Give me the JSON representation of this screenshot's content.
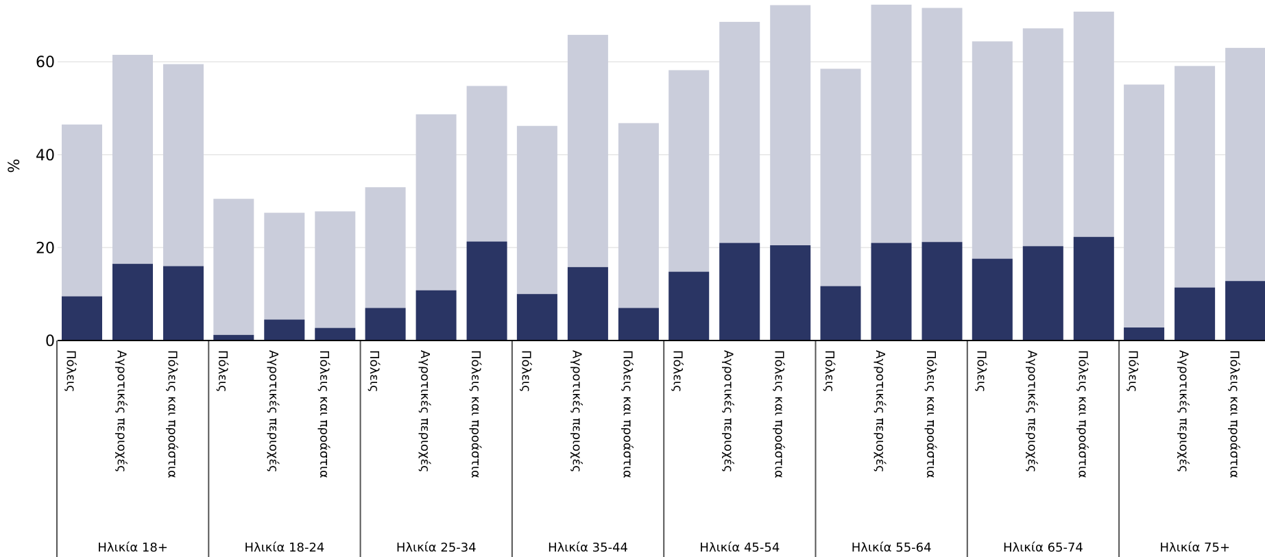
{
  "chart_data": {
    "type": "bar",
    "stacked": "overlapping",
    "title": "",
    "xlabel": "",
    "ylabel": "%",
    "ylim": [
      0,
      73
    ],
    "yticks": [
      "0",
      "20",
      "40",
      "60"
    ],
    "grid": "horizontal",
    "legend": "none",
    "colors": {
      "background_series": "#cacddb",
      "foreground_series": "#2a3564",
      "grid": "#e6e6e6",
      "axis": "#000000",
      "separator": "#555555"
    },
    "groups": [
      {
        "label": "Ηλικία 18+",
        "categories": [
          "Πόλεις",
          "Αγροτικές περιοχές",
          "Πόλεις και προάστια"
        ],
        "total": [
          46.5,
          61.5,
          59.5
        ],
        "dark": [
          9.5,
          16.5,
          16.0
        ]
      },
      {
        "label": "Ηλικία 18-24",
        "categories": [
          "Πόλεις",
          "Αγροτικές περιοχές",
          "Πόλεις και προάστια"
        ],
        "total": [
          30.5,
          27.5,
          27.8
        ],
        "dark": [
          1.2,
          4.5,
          2.7
        ]
      },
      {
        "label": "Ηλικία 25-34",
        "categories": [
          "Πόλεις",
          "Αγροτικές περιοχές",
          "Πόλεις και προάστια"
        ],
        "total": [
          33.0,
          48.7,
          54.8
        ],
        "dark": [
          7.0,
          10.8,
          21.3
        ]
      },
      {
        "label": "Ηλικία 35-44",
        "categories": [
          "Πόλεις",
          "Αγροτικές περιοχές",
          "Πόλεις και προάστια"
        ],
        "total": [
          46.2,
          65.8,
          46.8
        ],
        "dark": [
          10.0,
          15.8,
          7.0
        ]
      },
      {
        "label": "Ηλικία 45-54",
        "categories": [
          "Πόλεις",
          "Αγροτικές περιοχές",
          "Πόλεις και προάστια"
        ],
        "total": [
          58.2,
          68.6,
          72.2
        ],
        "dark": [
          14.8,
          21.0,
          20.5
        ]
      },
      {
        "label": "Ηλικία 55-64",
        "categories": [
          "Πόλεις",
          "Αγροτικές περιοχές",
          "Πόλεις και προάστια"
        ],
        "total": [
          58.5,
          72.3,
          71.6
        ],
        "dark": [
          11.7,
          21.0,
          21.2
        ]
      },
      {
        "label": "Ηλικία 65-74",
        "categories": [
          "Πόλεις",
          "Αγροτικές περιοχές",
          "Πόλεις και προάστια"
        ],
        "total": [
          64.4,
          67.2,
          70.8
        ],
        "dark": [
          17.6,
          20.3,
          22.3
        ]
      },
      {
        "label": "Ηλικία 75+",
        "categories": [
          "Πόλεις",
          "Αγροτικές περιοχές",
          "Πόλεις και προάστια"
        ],
        "total": [
          55.1,
          59.1,
          63.0
        ],
        "dark": [
          2.8,
          11.4,
          12.8
        ]
      }
    ]
  }
}
